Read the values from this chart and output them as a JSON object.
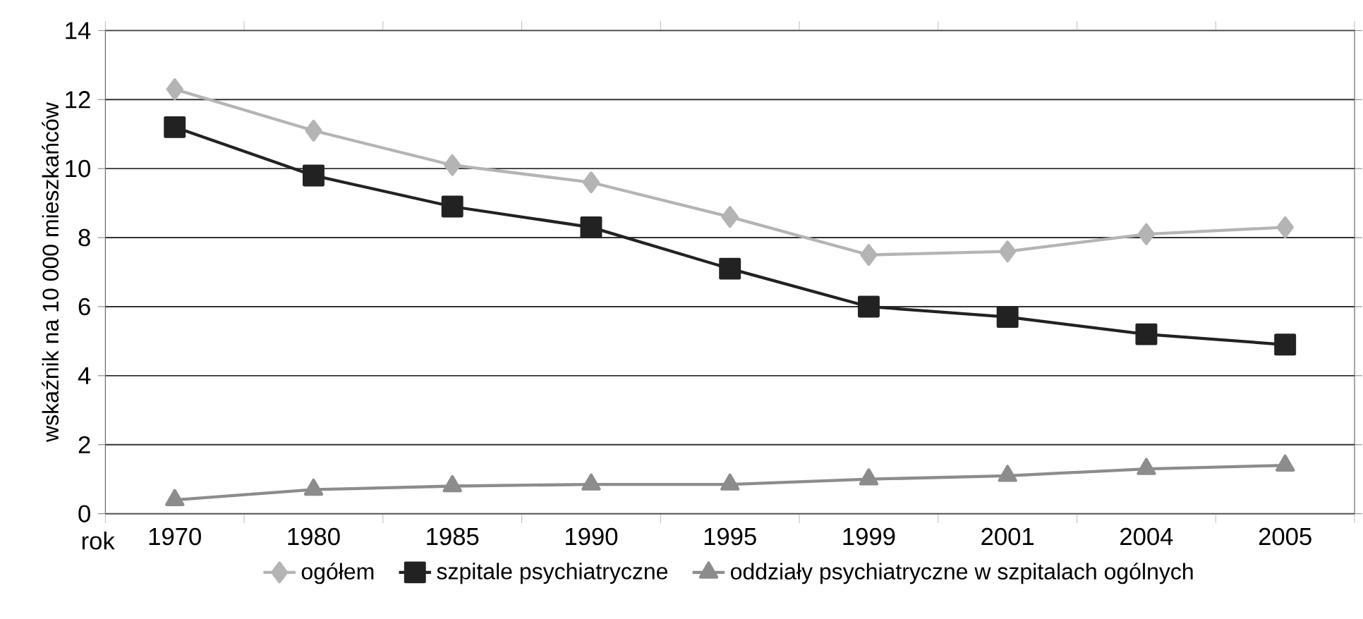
{
  "chart_data": {
    "type": "line",
    "xlabel": "rok",
    "ylabel": "wskaźnik na 10 000 mieszkańców",
    "categories": [
      "1970",
      "1980",
      "1985",
      "1990",
      "1995",
      "1999",
      "2001",
      "2004",
      "2005"
    ],
    "series": [
      {
        "name": "ogółem",
        "color": "#b4b4b4",
        "marker": "diamond",
        "values": [
          12.3,
          11.1,
          10.1,
          9.6,
          8.6,
          7.5,
          7.6,
          8.1,
          8.3
        ]
      },
      {
        "name": "szpitale psychiatryczne",
        "color": "#222222",
        "marker": "square",
        "values": [
          11.2,
          9.8,
          8.9,
          8.3,
          7.1,
          6.0,
          5.7,
          5.2,
          4.9
        ]
      },
      {
        "name": "oddziały psychiatryczne w szpitalach ogólnych",
        "color": "#8c8c8c",
        "marker": "triangle",
        "values": [
          0.4,
          0.7,
          0.8,
          0.85,
          0.85,
          1.0,
          1.1,
          1.3,
          1.4
        ]
      }
    ],
    "ylim": [
      0,
      14
    ],
    "yticks": [
      0,
      2,
      4,
      6,
      8,
      10,
      12,
      14
    ],
    "grid": "y",
    "legend": "bottom",
    "line_style": "solid"
  }
}
